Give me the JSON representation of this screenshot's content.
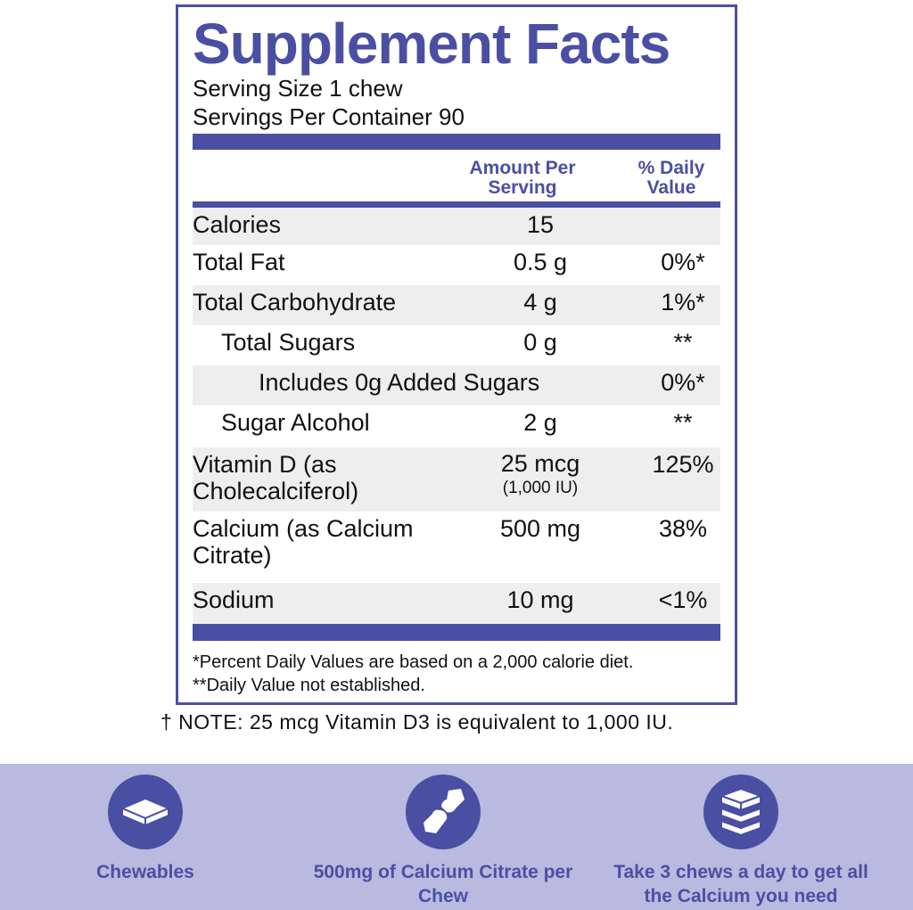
{
  "title": "Supplement Facts",
  "serving_size": "Serving Size 1 chew",
  "servings_per_container": "Servings Per Container 90",
  "headers": {
    "amount": "Amount Per Serving",
    "dv": "% Daily Value"
  },
  "rows": [
    {
      "name": "Calories",
      "amount": "15",
      "dv": ""
    },
    {
      "name": "Total Fat",
      "amount": "0.5 g",
      "dv": "0%*"
    },
    {
      "name": "Total Carbohydrate",
      "amount": "4 g",
      "dv": "1%*"
    },
    {
      "name": "Total Sugars",
      "amount": "0 g",
      "dv": "**"
    },
    {
      "name": "Includes 0g Added Sugars",
      "amount": "",
      "dv": "0%*"
    },
    {
      "name": "Sugar Alcohol",
      "amount": "2 g",
      "dv": "**"
    },
    {
      "name": "Vitamin D (as Cholecalciferol)",
      "amount": "25 mcg",
      "amount_sub": "(1,000 IU)",
      "dv": "125%"
    },
    {
      "name": "Calcium (as Calcium Citrate)",
      "amount": "500 mg",
      "dv": "38%"
    },
    {
      "name": "Sodium",
      "amount": "10 mg",
      "dv": "<1%"
    }
  ],
  "footnotes": [
    "*Percent Daily Values are based on a 2,000 calorie diet.",
    "**Daily Value not established."
  ],
  "note": "† NOTE: 25 mcg Vitamin D3 is equivalent to 1,000 IU.",
  "features": [
    {
      "icon": "chewable-icon",
      "label": "Chewables"
    },
    {
      "icon": "bone-joint-icon",
      "label": "500mg of Calcium Citrate per Chew"
    },
    {
      "icon": "stacked-chews-icon",
      "label": "Take 3 chews a day to get all the Calcium you need"
    }
  ],
  "colors": {
    "accent": "#4b4fa3",
    "band": "#b8badf",
    "row_shade": "#eeeeee"
  }
}
